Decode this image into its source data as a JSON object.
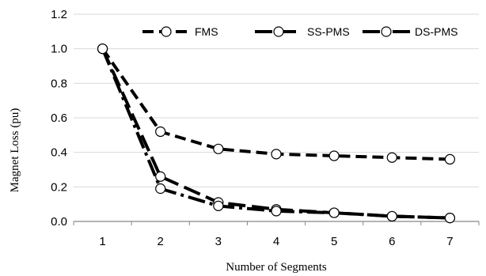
{
  "chart_data": {
    "type": "line",
    "title": "",
    "xlabel": "Number of Segments",
    "ylabel": "Magnet Loss (pu)",
    "x": [
      1,
      2,
      3,
      4,
      5,
      6,
      7
    ],
    "x_tick_labels": [
      "1",
      "2",
      "3",
      "4",
      "5",
      "6",
      "7"
    ],
    "ylim": [
      0,
      1.2
    ],
    "y_tick_labels": [
      "0.0",
      "0.2",
      "0.4",
      "0.6",
      "0.8",
      "1.0",
      "1.2"
    ],
    "grid": "horizontal",
    "legend_position": "top-right",
    "series": [
      {
        "name": "FMS",
        "dash": "short-dash",
        "values": [
          1.0,
          0.52,
          0.42,
          0.39,
          0.38,
          0.37,
          0.36
        ]
      },
      {
        "name": "SS-PMS",
        "dash": "long-dash",
        "values": [
          1.0,
          0.26,
          0.11,
          0.07,
          0.05,
          0.03,
          0.02
        ]
      },
      {
        "name": "DS-PMS",
        "dash": "dash-dot",
        "values": [
          1.0,
          0.19,
          0.09,
          0.06,
          0.05,
          0.03,
          0.02
        ]
      }
    ],
    "colors": {
      "line": "#000000",
      "marker_fill": "#ffffff",
      "grid": "#d9d9d9",
      "axis": "#868686"
    }
  }
}
